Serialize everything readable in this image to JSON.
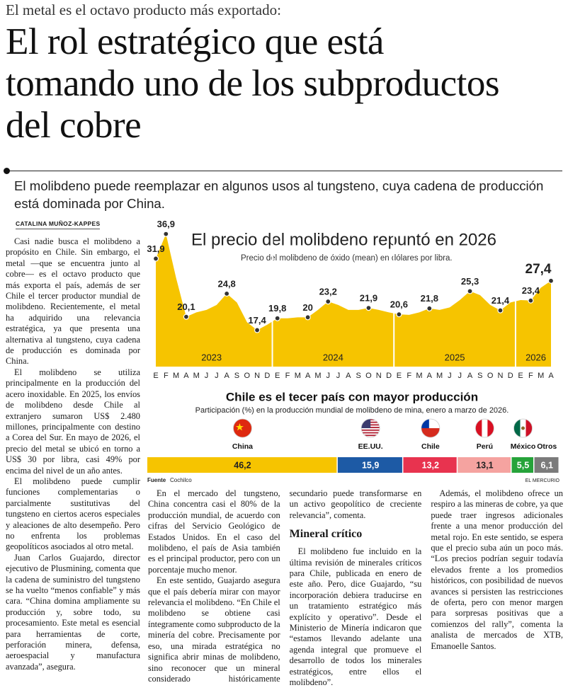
{
  "header": {
    "kicker": "El metal es el octavo producto más exportado:",
    "title": "El rol estratégico que está tomando uno de los subproductos del cobre",
    "subtitle": "El molibdeno puede reemplazar en algunos usos al tungsteno, cuya cadena de producción está dominada por China."
  },
  "byline": "CATALINA MUÑOZ-KAPPES",
  "column1": [
    "Casi nadie busca el molibdeno a propósito en Chile. Sin embargo, el metal —que se encuentra junto al cobre— es el octavo producto que más exporta el país, además de ser Chile el tercer productor mundial de molibdeno. Recientemente, el metal ha adquirido una relevancia estratégica, ya que presenta una alternativa al tungsteno, cuya cadena de producción es dominada por China.",
    "El molibdeno se utiliza principalmente en la producción del acero inoxidable. En 2025, los envíos de molibdeno desde Chile al extranjero sumaron US$ 2.480 millones, principalmente con destino a Corea del Sur. En mayo de 2026, el precio del metal se ubicó en torno a US$ 30 por libra, casi 49% por encima del nivel de un año antes.",
    "El molibdeno puede cumplir funciones complementarias o parcialmente sustitutivas del tungsteno en ciertos aceros especiales y aleaciones de alto desempeño. Pero no enfrenta los problemas geopolíticos asociados al otro metal.",
    "Juan Carlos Guajardo, director ejecutivo de Plusmining, comenta que la cadena de suministro del tungsteno se ha vuelto “menos confiable” y más cara. “China domina ampliamente su producción y, sobre todo, su procesamiento. Este metal es esencial para herramientas de corte, perforación minera, defensa, aeroespacial y manufactura avanzada”, asegura."
  ],
  "columns": [
    "En el mercado del tungsteno, China concentra casi el 80% de la producción mundial, de acuerdo con cifras del Servicio Geológico de Estados Unidos. En el caso del molibdeno, el país de Asia también es el principal productor, pero con un porcentaje mucho menor.",
    "En este sentido, Guajardo asegura que el país debería mirar con mayor relevancia el molibdeno. “En Chile el molibdeno se obtiene casi íntegramente como subproducto de la minería del cobre. Precisamente por eso, una mirada estratégica no significa abrir minas de molibdeno, sino reconocer que un mineral considerado históricamente secundario puede transformarse en un activo geopolítico de creciente relevancia”, comenta."
  ],
  "section_heading": "Mineral crítico",
  "section_paragraphs": [
    "El molibdeno fue incluido en la última revisión de minerales críticos para Chile, publicada en enero de este año. Pero, dice Guajardo, “su incorporación debiera traducirse en un tratamiento estratégico más explícito y operativo”. Desde el Ministerio de Minería indicaron que “estamos llevando adelante una agenda integral que promueve el desarrollo de todos los minerales estratégicos, entre ellos el molibdeno”.",
    "Además, el molibdeno ofrece un respiro a las mineras de cobre, ya que puede traer ingresos adicionales frente a una menor producción del metal rojo. En este sentido, se espera que el precio suba aún un poco más. “Los precios podrían seguir todavía elevados frente a los promedios históricos, con posibilidad de nuevos avances si persisten las restricciones de oferta, pero con menor margen para sorpresas positivas que a comienzos del rally”, comenta la analista de mercados de XTB, Emanoelle Santos."
  ],
  "chart_data": [
    {
      "type": "area",
      "title": "El precio del molibdeno repuntó en 2026",
      "subtitle": "Precio del molibdeno de óxido (mean) en dólares por libra.",
      "color": "#f6c400",
      "categories": [
        "E",
        "F",
        "M",
        "A",
        "M",
        "J",
        "J",
        "A",
        "S",
        "O",
        "N",
        "D",
        "E",
        "F",
        "M",
        "A",
        "M",
        "J",
        "J",
        "A",
        "S",
        "O",
        "N",
        "D",
        "E",
        "F",
        "M",
        "A",
        "M",
        "J",
        "J",
        "A",
        "S",
        "O",
        "N",
        "D",
        "E",
        "F",
        "M",
        "A"
      ],
      "year_labels": [
        "2023",
        "2024",
        "2025",
        "2026"
      ],
      "values": [
        31.9,
        36.9,
        28,
        20.1,
        21,
        21.5,
        22.5,
        24.8,
        23,
        19,
        17.4,
        18.5,
        19.8,
        19.8,
        20,
        20,
        21.5,
        23.2,
        22.5,
        21.5,
        21.5,
        21.9,
        21.5,
        21,
        20.6,
        20.5,
        21,
        21.8,
        21.5,
        22,
        23.5,
        25.3,
        24.5,
        22.5,
        21.4,
        23,
        23.5,
        23.4,
        26,
        27.4
      ],
      "value_labels": [
        "31,9",
        "36,9",
        null,
        "20,1",
        null,
        null,
        null,
        "24,8",
        null,
        null,
        "17,4",
        null,
        "19,8",
        null,
        null,
        "20",
        null,
        "23,2",
        null,
        null,
        null,
        "21,9",
        null,
        null,
        "20,6",
        null,
        null,
        "21,8",
        null,
        null,
        null,
        "25,3",
        null,
        null,
        "21,4",
        null,
        null,
        "23,4",
        null,
        "27,4"
      ],
      "ylim": [
        10,
        40
      ]
    },
    {
      "type": "stacked-bar",
      "title": "Chile es el tecer país con mayor producción",
      "subtitle": "Participación (%) en la producción mundial de molibdeno de mina, enero a marzo de 2026.",
      "categories": [
        "China",
        "EE.UU.",
        "Chile",
        "Perú",
        "México",
        "Otros"
      ],
      "values": [
        46.2,
        15.9,
        13.2,
        13.1,
        5.5,
        6.1
      ],
      "value_labels": [
        "46,2",
        "15,9",
        "13,2",
        "13,1",
        "5,5",
        "6,1"
      ],
      "colors": [
        "#f6c400",
        "#1d5aa5",
        "#e8334f",
        "#f5a3a0",
        "#26a33a",
        "#7b7b7b"
      ],
      "xlim": [
        0,
        100
      ],
      "source_label": "Fuente",
      "source": "Cochilco",
      "credit": "EL MERCURIO"
    }
  ]
}
